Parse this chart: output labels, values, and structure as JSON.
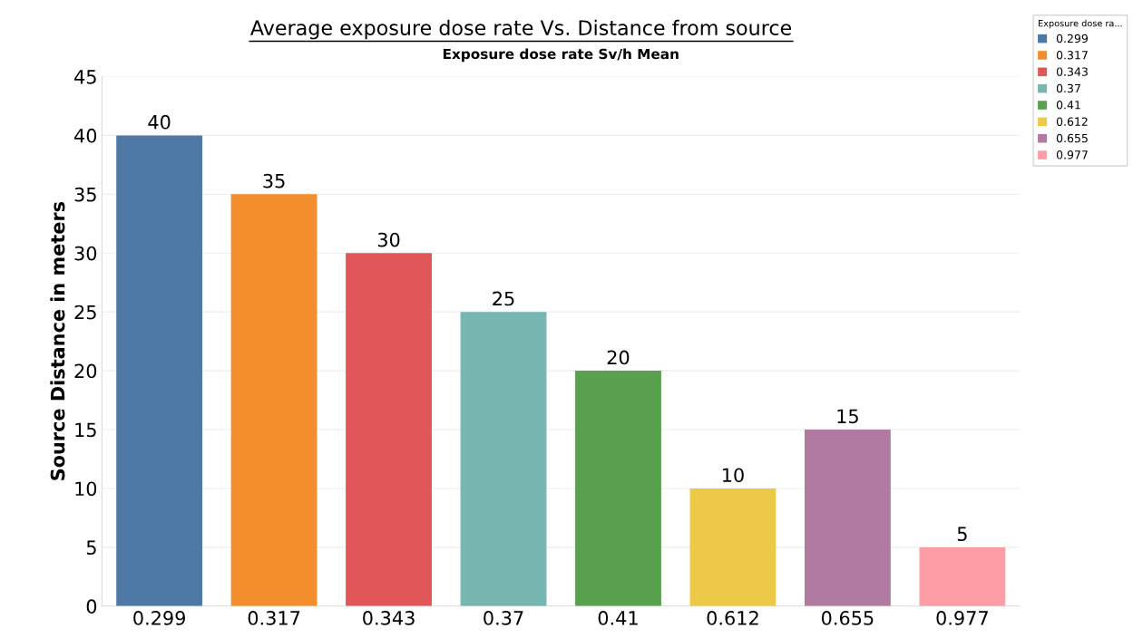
{
  "chart_data": {
    "type": "bar",
    "title": "Average exposure dose rate Vs. Distance from source",
    "xlabel": "Exposure dose rate Sv/h Mean",
    "ylabel": "Source Distance in meters",
    "legend_title": "Exposure dose ra...",
    "categories": [
      "0.299",
      "0.317",
      "0.343",
      "0.37",
      "0.41",
      "0.612",
      "0.655",
      "0.977"
    ],
    "series": [
      {
        "name": "0.299",
        "color": "#4e79a7",
        "values": [
          40,
          null,
          null,
          null,
          null,
          null,
          null,
          null
        ]
      },
      {
        "name": "0.317",
        "color": "#f28e2b",
        "values": [
          null,
          35,
          null,
          null,
          null,
          null,
          null,
          null
        ]
      },
      {
        "name": "0.343",
        "color": "#e15759",
        "values": [
          null,
          null,
          30,
          null,
          null,
          null,
          null,
          null
        ]
      },
      {
        "name": "0.37",
        "color": "#76b7b2",
        "values": [
          null,
          null,
          null,
          25,
          null,
          null,
          null,
          null
        ]
      },
      {
        "name": "0.41",
        "color": "#59a14f",
        "values": [
          null,
          null,
          null,
          null,
          20,
          null,
          null,
          null
        ]
      },
      {
        "name": "0.612",
        "color": "#edc948",
        "values": [
          null,
          null,
          null,
          null,
          null,
          10,
          null,
          null
        ]
      },
      {
        "name": "0.655",
        "color": "#b07aa1",
        "values": [
          null,
          null,
          null,
          null,
          null,
          null,
          15,
          null
        ]
      },
      {
        "name": "0.977",
        "color": "#ff9da7",
        "values": [
          null,
          null,
          null,
          null,
          null,
          null,
          null,
          5
        ]
      }
    ],
    "ylim": [
      0,
      45
    ],
    "yticks": [
      0,
      5,
      10,
      15,
      20,
      25,
      30,
      35,
      40,
      45
    ],
    "grid": "y",
    "legend": "top right",
    "data_labels": true
  }
}
